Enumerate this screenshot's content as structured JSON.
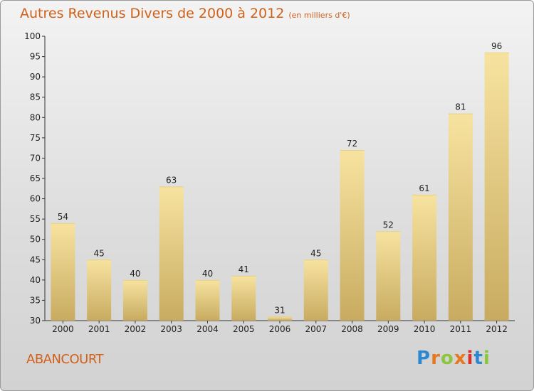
{
  "title": "Autres Revenus Divers de 2000 à 2012",
  "subtitle": "(en milliers d'€)",
  "commune": "ABANCOURT",
  "logo": {
    "letters": [
      "P",
      "r",
      "o",
      "x",
      "i",
      "t",
      "i"
    ],
    "colors": [
      "#2e88cf",
      "#e8781e",
      "#8cc63f",
      "#e8781e",
      "#d9302b",
      "#2e88cf",
      "#8cc63f"
    ]
  },
  "colors": {
    "accent": "#d0611a",
    "bar_light": "#f5df98",
    "bar_dark": "#c9ad62"
  },
  "chart_data": {
    "type": "bar",
    "title": "Autres Revenus Divers de 2000 à 2012",
    "subtitle": "(en milliers d'€)",
    "categories": [
      "2000",
      "2001",
      "2002",
      "2003",
      "2004",
      "2005",
      "2006",
      "2007",
      "2008",
      "2009",
      "2010",
      "2011",
      "2012"
    ],
    "values": [
      54,
      45,
      40,
      63,
      40,
      41,
      31,
      45,
      72,
      52,
      61,
      81,
      96
    ],
    "ylim": [
      30,
      100
    ],
    "yticks": [
      30,
      35,
      40,
      45,
      50,
      55,
      60,
      65,
      70,
      75,
      80,
      85,
      90,
      95,
      100
    ],
    "xlabel": "",
    "ylabel": "",
    "grid": false,
    "legend": "none"
  }
}
